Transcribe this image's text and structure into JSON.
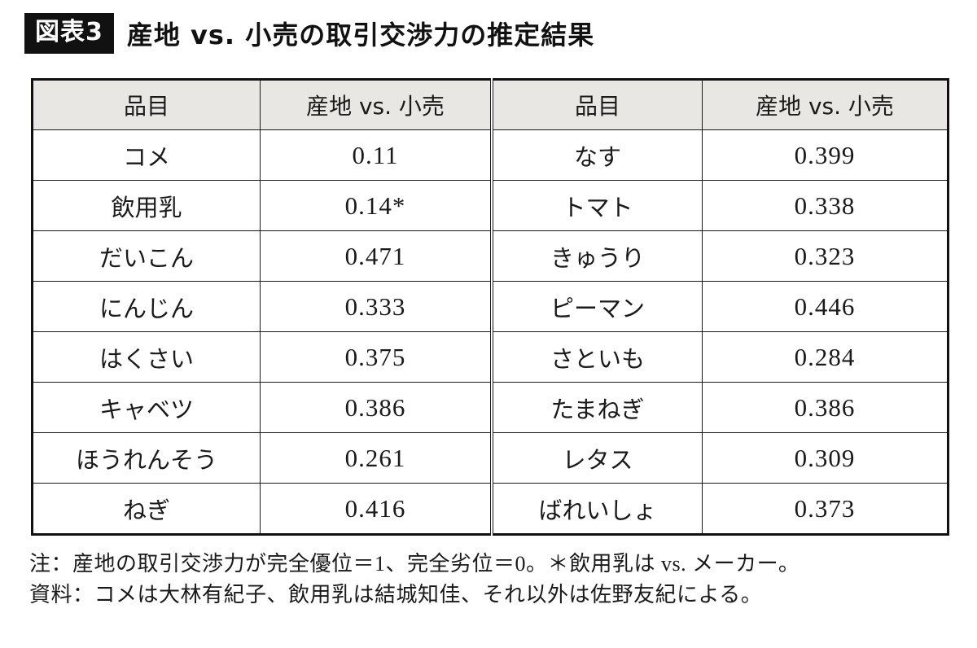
{
  "figure": {
    "tag": "図表3",
    "title": "産地 vs. 小売の取引交渉力の推定結果"
  },
  "chart_data": {
    "type": "table",
    "columns": [
      "品目",
      "産地 vs. 小売",
      "品目",
      "産地 vs. 小売"
    ],
    "rows": [
      [
        "コメ",
        "0.11",
        "なす",
        "0.399"
      ],
      [
        "飲用乳",
        "0.14*",
        "トマト",
        "0.338"
      ],
      [
        "だいこん",
        "0.471",
        "きゅうり",
        "0.323"
      ],
      [
        "にんじん",
        "0.333",
        "ピーマン",
        "0.446"
      ],
      [
        "はくさい",
        "0.375",
        "さといも",
        "0.284"
      ],
      [
        "キャベツ",
        "0.386",
        "たまねぎ",
        "0.386"
      ],
      [
        "ほうれんそう",
        "0.261",
        "レタス",
        "0.309"
      ],
      [
        "ねぎ",
        "0.416",
        "ばれいしょ",
        "0.373"
      ]
    ],
    "notes": [
      "注：産地の取引交渉力が完全優位＝1、完全劣位＝0。＊飲用乳は vs. メーカー。",
      "資料：コメは大林有紀子、飲用乳は結城知佳、それ以外は佐野友紀による。"
    ],
    "header_bg": "#e9e7e3",
    "legend_position": "none",
    "grid": "full-borders"
  }
}
